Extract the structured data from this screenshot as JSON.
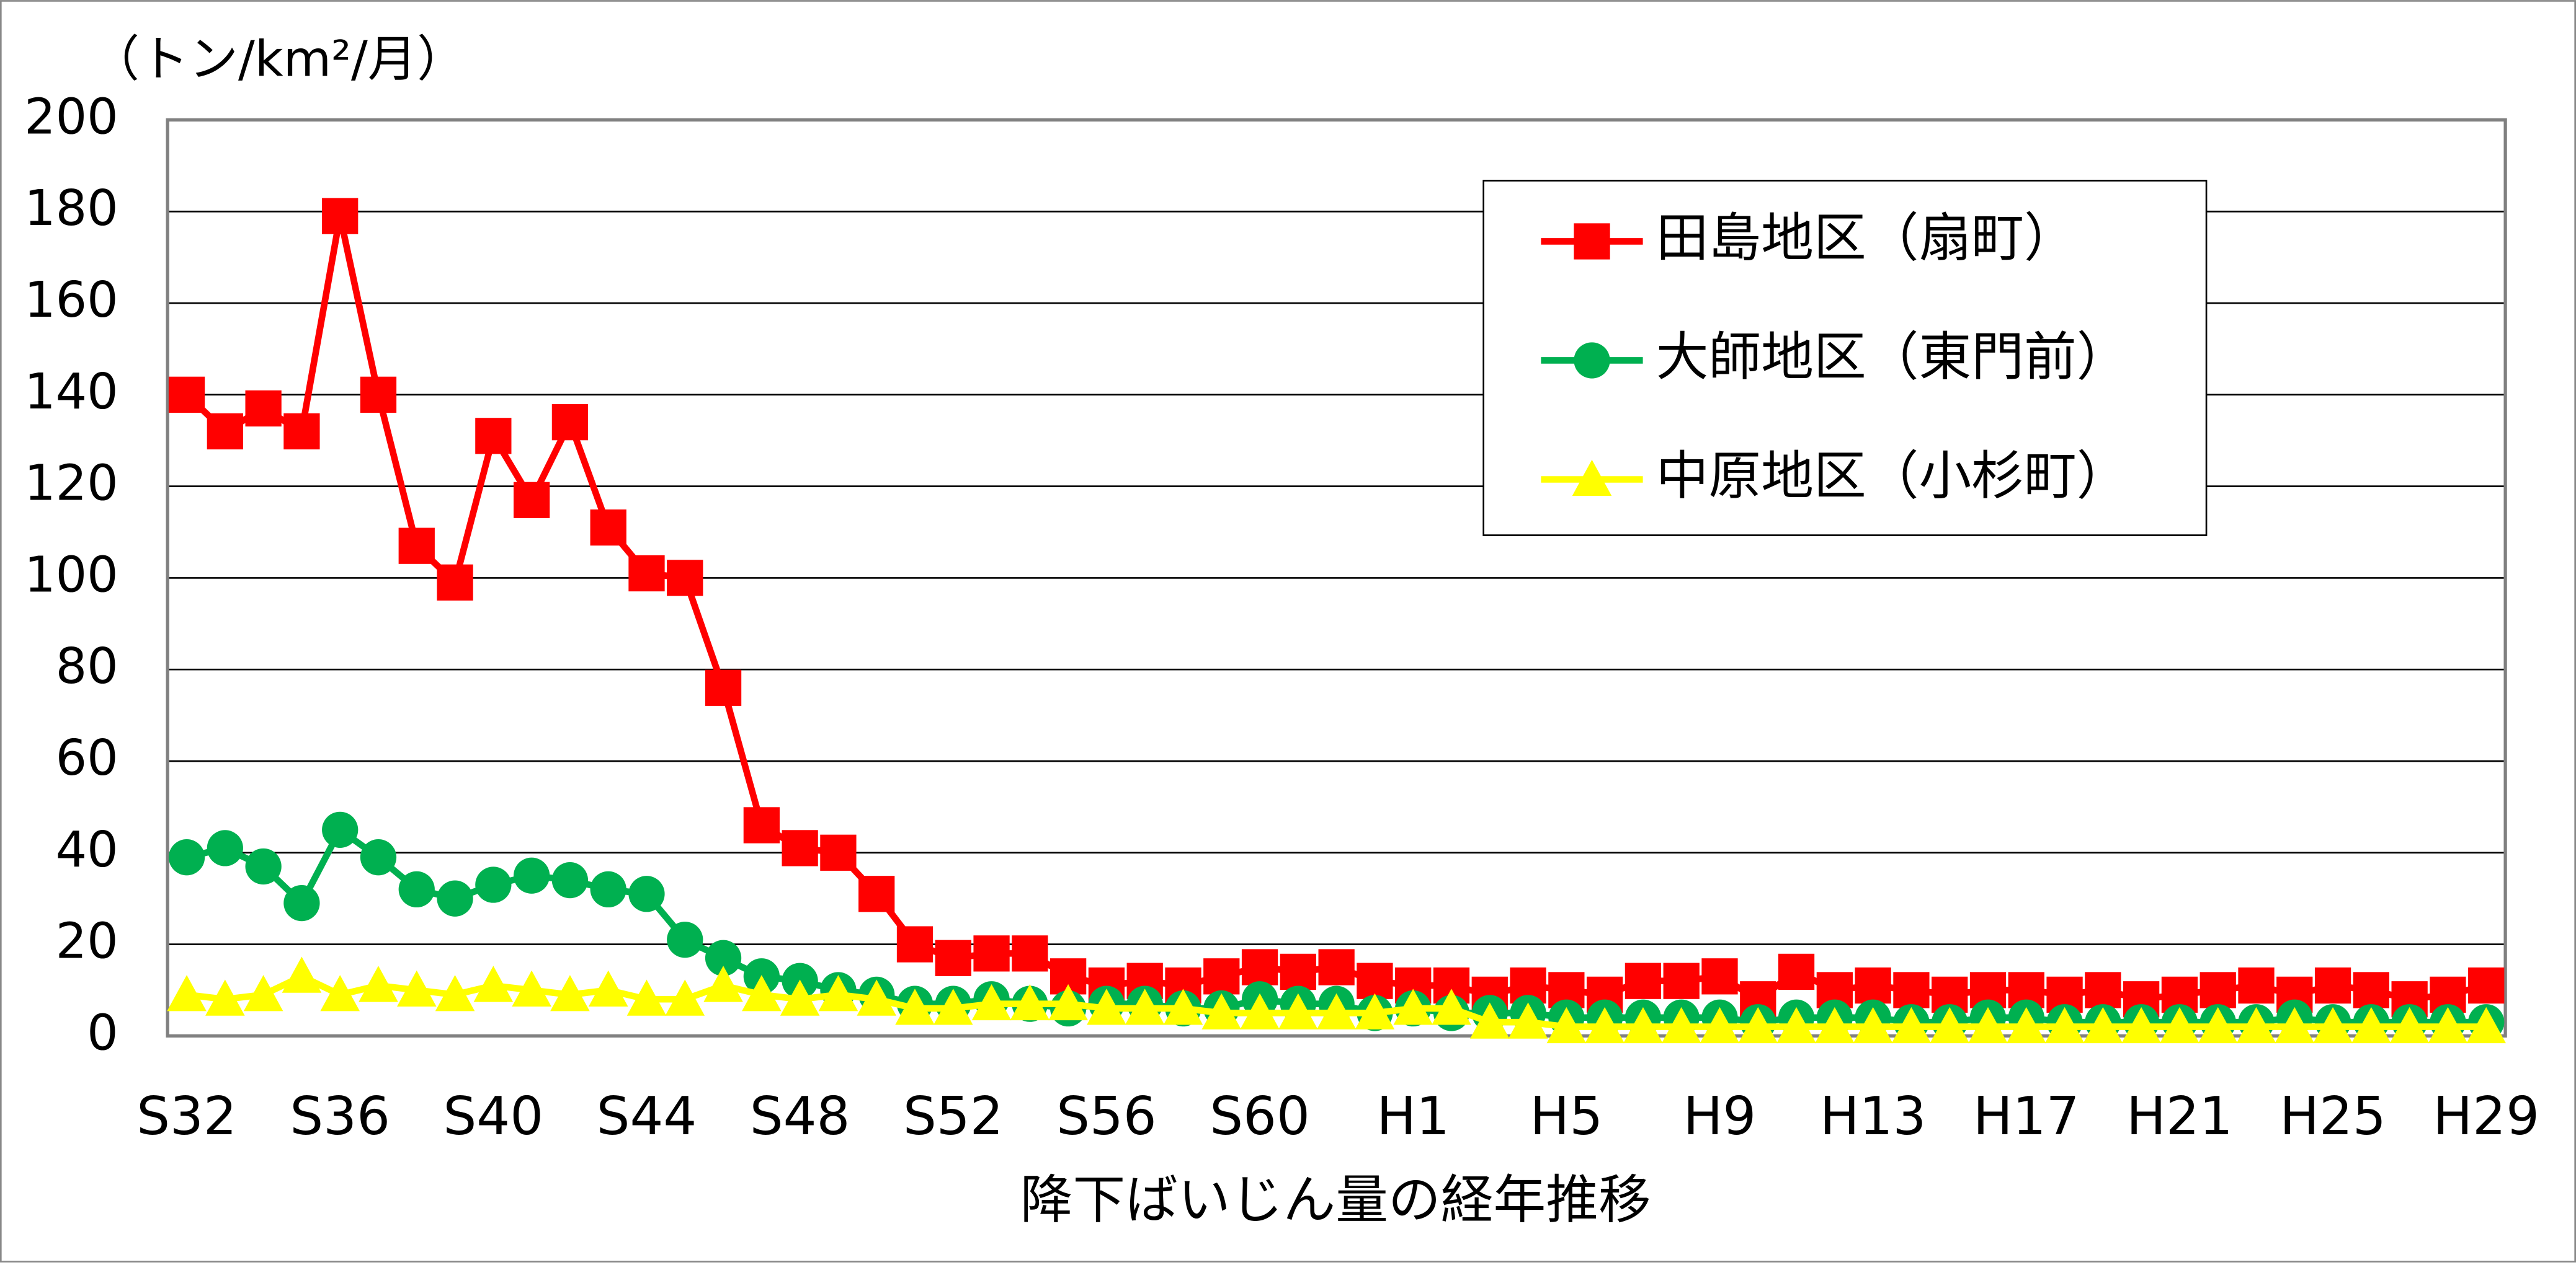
{
  "chart_data": {
    "type": "line",
    "title": "降下ばいじん量の経年推移",
    "y_label": "（トン/km²/月）",
    "categories": [
      "S32",
      null,
      null,
      null,
      "S36",
      null,
      null,
      null,
      "S40",
      null,
      null,
      null,
      "S44",
      null,
      null,
      null,
      "S48",
      null,
      null,
      null,
      "S52",
      null,
      null,
      null,
      "S56",
      null,
      null,
      null,
      "S60",
      null,
      null,
      null,
      "H1",
      null,
      null,
      null,
      "H5",
      null,
      null,
      null,
      "H9",
      null,
      null,
      null,
      "H13",
      null,
      null,
      null,
      "H17",
      null,
      null,
      null,
      "H21",
      null,
      null,
      null,
      "H25",
      null,
      null,
      null,
      "H29"
    ],
    "series": [
      {
        "name": "田島地区（扇町）",
        "color": "#ff0000",
        "marker": "square",
        "values": [
          140,
          132,
          137,
          132,
          179,
          140,
          107,
          99,
          131,
          117,
          134,
          111,
          101,
          100,
          76,
          46,
          41,
          40,
          31,
          20,
          17,
          18,
          18,
          13,
          11,
          12,
          11,
          13,
          15,
          14,
          15,
          12,
          11,
          11,
          9,
          11,
          10,
          9,
          12,
          12,
          13,
          8,
          14,
          10,
          11,
          10,
          9,
          10,
          10,
          9,
          10,
          8,
          9,
          10,
          11,
          9,
          11,
          10,
          8,
          9,
          11
        ]
      },
      {
        "name": "大師地区（東門前）",
        "color": "#00b050",
        "marker": "circle",
        "values": [
          39,
          41,
          37,
          29,
          45,
          39,
          32,
          30,
          33,
          35,
          34,
          32,
          31,
          21,
          17,
          13,
          12,
          10,
          9,
          7,
          7,
          8,
          7,
          6,
          7,
          7,
          6,
          6,
          8,
          7,
          7,
          5,
          6,
          5,
          5,
          5,
          4,
          4,
          4,
          4,
          4,
          3,
          4,
          4,
          4,
          3,
          3,
          4,
          4,
          3,
          3,
          3,
          3,
          3,
          3,
          4,
          3,
          3,
          3,
          3,
          3
        ]
      },
      {
        "name": "中原地区（小杉町）",
        "color": "#ffff00",
        "marker": "triangle",
        "values": [
          9,
          8,
          9,
          13,
          9,
          11,
          10,
          9,
          11,
          10,
          9,
          10,
          8,
          8,
          11,
          9,
          8,
          9,
          8,
          6,
          6,
          7,
          7,
          7,
          6,
          6,
          6,
          5,
          5,
          5,
          5,
          5,
          6,
          6,
          3,
          3,
          2,
          2,
          2,
          2,
          2,
          2,
          2,
          2,
          2,
          2,
          2,
          2,
          2,
          2,
          2,
          2,
          2,
          2,
          2,
          2,
          2,
          2,
          2,
          2,
          2
        ]
      }
    ],
    "ylim": [
      0,
      200
    ],
    "yticks": [
      0,
      20,
      40,
      60,
      80,
      100,
      120,
      140,
      160,
      180,
      200
    ],
    "grid": true,
    "legend": "top-right"
  }
}
